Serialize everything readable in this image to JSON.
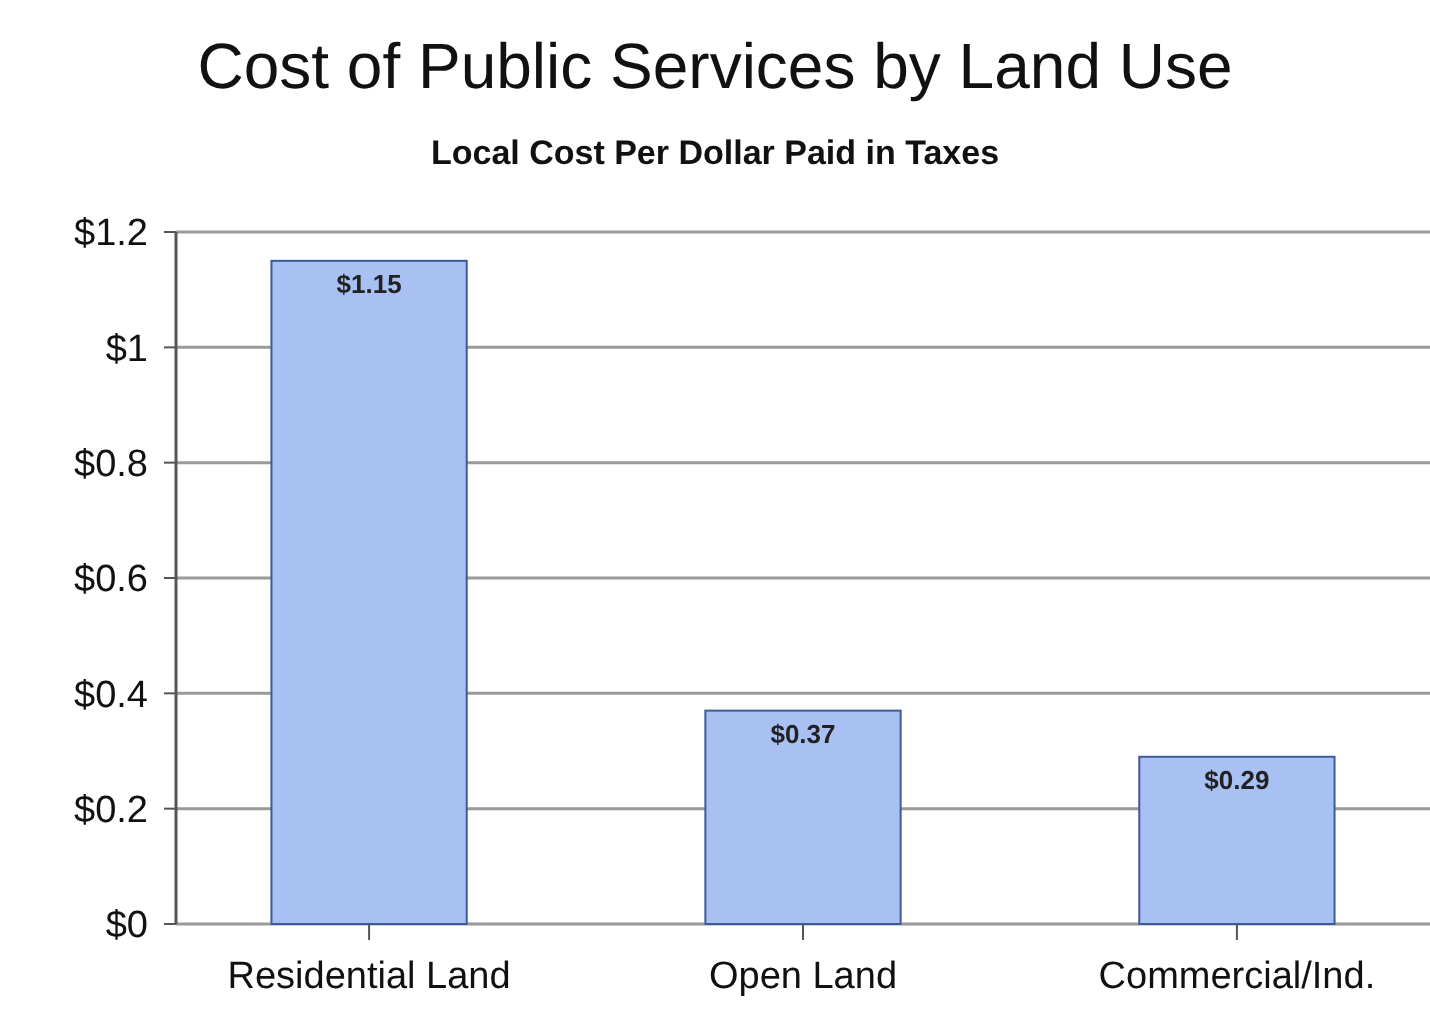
{
  "chart_data": {
    "type": "bar",
    "title": "Cost of Public Services by Land Use",
    "subtitle": "Local Cost Per Dollar Paid in Taxes",
    "categories": [
      "Residential Land",
      "Open Land",
      "Commercial/Ind."
    ],
    "values": [
      1.15,
      0.37,
      0.29
    ],
    "color": "#a9c0f2",
    "value_labels": [
      "$1.15",
      "$0.37",
      "$0.29"
    ],
    "ylim": [
      0,
      1.2
    ],
    "yticks": [
      {
        "value": 0,
        "label": "$0"
      },
      {
        "value": 0.2,
        "label": "$0.2"
      },
      {
        "value": 0.4,
        "label": "$0.4"
      },
      {
        "value": 0.6,
        "label": "$0.6"
      },
      {
        "value": 0.8,
        "label": "$0.8"
      },
      {
        "value": 1,
        "label": "$1"
      },
      {
        "value": 1.2,
        "label": "$1.2"
      }
    ],
    "grid": "y"
  }
}
